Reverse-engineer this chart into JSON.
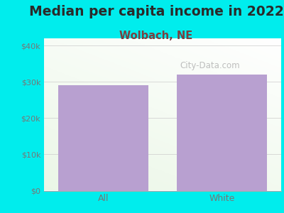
{
  "title": "Median per capita income in 2022",
  "subtitle": "Wolbach, NE",
  "categories": [
    "All",
    "White"
  ],
  "values": [
    29000,
    32000
  ],
  "bar_color": "#b8a0d0",
  "background_outer": "#00eded",
  "title_color": "#2a2a2a",
  "subtitle_color": "#7a4040",
  "tick_label_color": "#777777",
  "ylim": [
    0,
    42000
  ],
  "yticks": [
    0,
    10000,
    20000,
    30000,
    40000
  ],
  "ytick_labels": [
    "$0",
    "$10k",
    "$20k",
    "$30k",
    "$40k"
  ],
  "watermark": "City-Data.com",
  "title_fontsize": 13.5,
  "subtitle_fontsize": 10.5
}
